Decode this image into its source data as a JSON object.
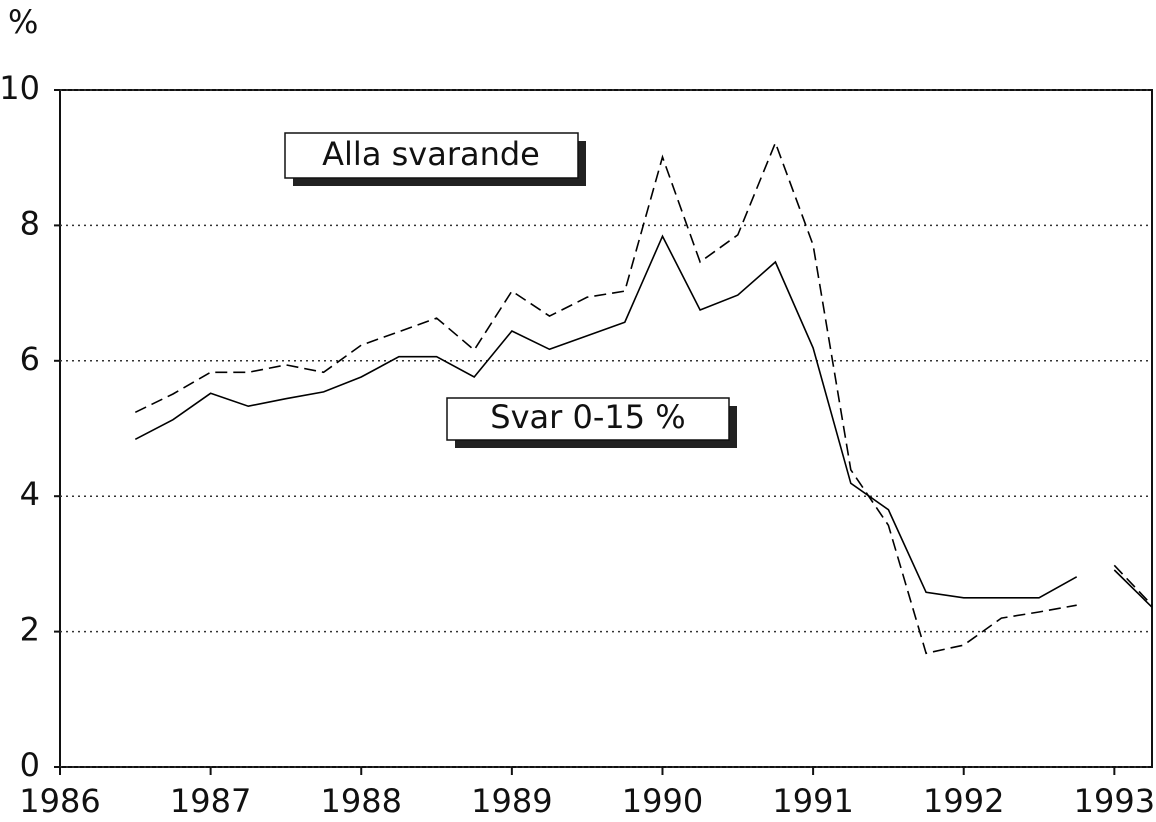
{
  "chart_data": {
    "type": "line",
    "ylabel": "%",
    "x": [
      1986.5,
      1986.75,
      1987,
      1987.25,
      1987.5,
      1987.75,
      1988,
      1988.25,
      1988.5,
      1988.75,
      1989,
      1989.25,
      1989.5,
      1989.75,
      1990,
      1990.25,
      1990.5,
      1990.75,
      1991,
      1991.25,
      1991.5,
      1991.75,
      1992,
      1992.25,
      1992.5,
      1992.75,
      1992.875,
      1993,
      1993.25
    ],
    "series": [
      {
        "name": "Alla svarande",
        "color": "#000000",
        "style": "dashed",
        "values": [
          5.24,
          5.51,
          5.83,
          5.83,
          5.94,
          5.83,
          6.23,
          6.43,
          6.63,
          6.16,
          7.03,
          6.66,
          6.94,
          7.03,
          9.01,
          7.46,
          7.86,
          9.22,
          7.71,
          4.39,
          3.57,
          1.68,
          1.8,
          2.2,
          2.29,
          2.39,
          null,
          2.98,
          2.39
        ]
      },
      {
        "name": "Svar 0-15 %",
        "color": "#000000",
        "style": "solid",
        "values": [
          4.84,
          5.13,
          5.52,
          5.33,
          5.44,
          5.54,
          5.76,
          6.06,
          6.06,
          5.76,
          6.44,
          6.17,
          6.37,
          6.57,
          7.84,
          6.75,
          6.97,
          7.46,
          6.19,
          4.19,
          3.8,
          2.58,
          2.5,
          2.5,
          2.5,
          2.81,
          null,
          2.91,
          2.36
        ]
      }
    ],
    "xlim": [
      1986,
      1993.25
    ],
    "xticks": [
      1986,
      1987,
      1988,
      1989,
      1990,
      1991,
      1992,
      1993
    ],
    "ylim": [
      0,
      10
    ],
    "yticks": [
      0,
      2,
      4,
      6,
      8,
      10
    ],
    "grid": true
  }
}
